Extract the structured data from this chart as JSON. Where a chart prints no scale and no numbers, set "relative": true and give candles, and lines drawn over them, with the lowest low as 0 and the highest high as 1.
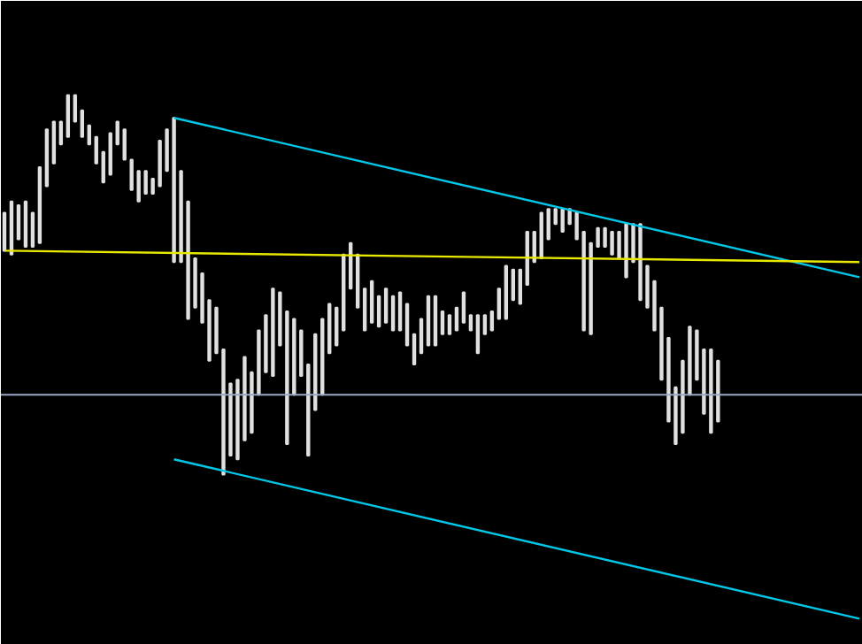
{
  "chart_data": {
    "type": "candlestick",
    "relative": true,
    "tick_labels": false,
    "grid": false,
    "color": "#e0e0e0",
    "categories": [
      null,
      null,
      null,
      null,
      null,
      null,
      null,
      null,
      null,
      null,
      null,
      null,
      null,
      null,
      null,
      null,
      null,
      null,
      null,
      null,
      null,
      null,
      null,
      null,
      null,
      null,
      null,
      null,
      null,
      null,
      null,
      null,
      null,
      null,
      null,
      null,
      null,
      null,
      null,
      null,
      null,
      null,
      null,
      null,
      null,
      null,
      null,
      null,
      null,
      null,
      null,
      null,
      null,
      null,
      null,
      null,
      null,
      null,
      null,
      null,
      null,
      null,
      null,
      null,
      null,
      null,
      null,
      null,
      null,
      null,
      null,
      null,
      null,
      null,
      null,
      null,
      null,
      null,
      null,
      null,
      null,
      null,
      null,
      null,
      null,
      null,
      null,
      null,
      null,
      null,
      null,
      null,
      null,
      null,
      null,
      null,
      null,
      null,
      null,
      null,
      null,
      null,
      null,
      null,
      null,
      null,
      null,
      null,
      null,
      null,
      null,
      null,
      null,
      null,
      null,
      null,
      null,
      null,
      null,
      null,
      null,
      null
    ],
    "ohlc": [
      [
        0.59,
        0.69,
        0.59,
        0.69
      ],
      [
        0.58,
        0.72,
        0.58,
        0.72
      ],
      [
        0.62,
        0.71,
        0.62,
        0.71
      ],
      [
        0.6,
        0.72,
        0.6,
        0.72
      ],
      [
        0.6,
        0.69,
        0.6,
        0.69
      ],
      [
        0.61,
        0.81,
        0.61,
        0.81
      ],
      [
        0.76,
        0.91,
        0.76,
        0.91
      ],
      [
        0.82,
        0.93,
        0.82,
        0.93
      ],
      [
        0.87,
        0.93,
        0.87,
        0.93
      ],
      [
        0.89,
        1.0,
        0.89,
        1.0
      ],
      [
        0.93,
        1.0,
        0.93,
        1.0
      ],
      [
        0.89,
        0.96,
        0.89,
        0.96
      ],
      [
        0.87,
        0.92,
        0.87,
        0.92
      ],
      [
        0.82,
        0.89,
        0.82,
        0.89
      ],
      [
        0.77,
        0.85,
        0.77,
        0.85
      ],
      [
        0.79,
        0.9,
        0.79,
        0.9
      ],
      [
        0.87,
        0.93,
        0.87,
        0.93
      ],
      [
        0.83,
        0.91,
        0.83,
        0.91
      ],
      [
        0.75,
        0.83,
        0.75,
        0.83
      ],
      [
        0.72,
        0.8,
        0.72,
        0.8
      ],
      [
        0.74,
        0.8,
        0.74,
        0.8
      ],
      [
        0.74,
        0.78,
        0.74,
        0.78
      ],
      [
        0.76,
        0.88,
        0.76,
        0.88
      ],
      [
        0.8,
        0.91,
        0.8,
        0.91
      ],
      [
        0.56,
        0.94,
        0.56,
        0.94
      ],
      [
        0.56,
        0.8,
        0.56,
        0.8
      ],
      [
        0.41,
        0.72,
        0.41,
        0.72
      ],
      [
        0.44,
        0.57,
        0.44,
        0.57
      ],
      [
        0.4,
        0.53,
        0.4,
        0.53
      ],
      [
        0.3,
        0.46,
        0.3,
        0.46
      ],
      [
        0.32,
        0.44,
        0.32,
        0.44
      ],
      [
        0.0,
        0.33,
        0.0,
        0.33
      ],
      [
        0.05,
        0.24,
        0.05,
        0.24
      ],
      [
        0.04,
        0.25,
        0.04,
        0.25
      ],
      [
        0.09,
        0.31,
        0.09,
        0.31
      ],
      [
        0.11,
        0.27,
        0.11,
        0.27
      ],
      [
        0.21,
        0.38,
        0.21,
        0.38
      ],
      [
        0.27,
        0.42,
        0.27,
        0.42
      ],
      [
        0.26,
        0.49,
        0.26,
        0.49
      ],
      [
        0.34,
        0.48,
        0.34,
        0.48
      ],
      [
        0.08,
        0.43,
        0.08,
        0.43
      ],
      [
        0.21,
        0.41,
        0.21,
        0.41
      ],
      [
        0.26,
        0.38,
        0.26,
        0.38
      ],
      [
        0.05,
        0.29,
        0.05,
        0.29
      ],
      [
        0.17,
        0.37,
        0.17,
        0.37
      ],
      [
        0.21,
        0.41,
        0.21,
        0.41
      ],
      [
        0.32,
        0.45,
        0.32,
        0.45
      ],
      [
        0.34,
        0.44,
        0.34,
        0.44
      ],
      [
        0.38,
        0.58,
        0.38,
        0.58
      ],
      [
        0.49,
        0.61,
        0.49,
        0.61
      ],
      [
        0.44,
        0.58,
        0.44,
        0.58
      ],
      [
        0.38,
        0.49,
        0.38,
        0.49
      ],
      [
        0.4,
        0.51,
        0.4,
        0.51
      ],
      [
        0.39,
        0.47,
        0.39,
        0.47
      ],
      [
        0.4,
        0.49,
        0.4,
        0.49
      ],
      [
        0.38,
        0.47,
        0.38,
        0.47
      ],
      [
        0.38,
        0.48,
        0.38,
        0.48
      ],
      [
        0.34,
        0.45,
        0.34,
        0.45
      ],
      [
        0.29,
        0.37,
        0.29,
        0.37
      ],
      [
        0.32,
        0.41,
        0.32,
        0.41
      ],
      [
        0.34,
        0.47,
        0.34,
        0.47
      ],
      [
        0.34,
        0.47,
        0.34,
        0.47
      ],
      [
        0.37,
        0.43,
        0.37,
        0.43
      ],
      [
        0.37,
        0.42,
        0.37,
        0.42
      ],
      [
        0.38,
        0.44,
        0.38,
        0.44
      ],
      [
        0.4,
        0.48,
        0.4,
        0.48
      ],
      [
        0.38,
        0.42,
        0.38,
        0.42
      ],
      [
        0.32,
        0.42,
        0.32,
        0.42
      ],
      [
        0.37,
        0.42,
        0.37,
        0.42
      ],
      [
        0.38,
        0.43,
        0.38,
        0.43
      ],
      [
        0.41,
        0.49,
        0.41,
        0.49
      ],
      [
        0.41,
        0.55,
        0.41,
        0.55
      ],
      [
        0.46,
        0.54,
        0.46,
        0.54
      ],
      [
        0.45,
        0.54,
        0.45,
        0.54
      ],
      [
        0.5,
        0.64,
        0.5,
        0.64
      ],
      [
        0.56,
        0.64,
        0.56,
        0.64
      ],
      [
        0.57,
        0.69,
        0.57,
        0.69
      ],
      [
        0.62,
        0.7,
        0.62,
        0.7
      ],
      [
        0.66,
        0.7,
        0.66,
        0.7
      ],
      [
        0.64,
        0.7,
        0.64,
        0.7
      ],
      [
        0.66,
        0.7,
        0.66,
        0.7
      ],
      [
        0.62,
        0.69,
        0.62,
        0.69
      ],
      [
        0.38,
        0.64,
        0.38,
        0.64
      ],
      [
        0.37,
        0.61,
        0.37,
        0.61
      ],
      [
        0.6,
        0.65,
        0.6,
        0.65
      ],
      [
        0.6,
        0.65,
        0.6,
        0.65
      ],
      [
        0.58,
        0.64,
        0.58,
        0.64
      ],
      [
        0.57,
        0.64,
        0.57,
        0.64
      ],
      [
        0.52,
        0.66,
        0.52,
        0.66
      ],
      [
        0.56,
        0.66,
        0.56,
        0.66
      ],
      [
        0.46,
        0.66,
        0.46,
        0.66
      ],
      [
        0.44,
        0.55,
        0.44,
        0.55
      ],
      [
        0.38,
        0.51,
        0.38,
        0.51
      ],
      [
        0.25,
        0.44,
        0.25,
        0.44
      ],
      [
        0.14,
        0.36,
        0.14,
        0.36
      ],
      [
        0.08,
        0.23,
        0.08,
        0.23
      ],
      [
        0.11,
        0.3,
        0.11,
        0.3
      ],
      [
        0.21,
        0.39,
        0.21,
        0.39
      ],
      [
        0.25,
        0.38,
        0.25,
        0.38
      ],
      [
        0.16,
        0.33,
        0.16,
        0.33
      ],
      [
        0.11,
        0.33,
        0.11,
        0.33
      ],
      [
        0.14,
        0.3,
        0.14,
        0.3
      ],
      null,
      null,
      null,
      null,
      null,
      null,
      null,
      null,
      null,
      null,
      null,
      null,
      null,
      null,
      null,
      null,
      null,
      null,
      null,
      null
    ],
    "series": [
      {
        "type": "line",
        "color": "#00c8e8",
        "values": [
          null,
          null,
          null,
          null,
          null,
          null,
          null,
          null,
          null,
          null,
          null,
          null,
          null,
          null,
          null,
          null,
          null,
          null,
          null,
          null,
          null,
          null,
          null,
          null,
          0.94,
          null,
          null,
          null,
          null,
          null,
          null,
          null,
          null,
          null,
          null,
          null,
          null,
          null,
          null,
          null,
          null,
          null,
          null,
          null,
          null,
          null,
          null,
          null,
          null,
          null,
          null,
          null,
          null,
          null,
          null,
          null,
          null,
          null,
          null,
          null,
          null,
          null,
          null,
          null,
          null,
          null,
          null,
          null,
          null,
          null,
          null,
          null,
          null,
          null,
          null,
          null,
          null,
          null,
          null,
          null,
          null,
          null,
          null,
          null,
          null,
          null,
          null,
          null,
          null,
          null,
          null,
          null,
          null,
          null,
          null,
          null,
          null,
          null,
          null,
          null,
          null,
          null,
          null,
          null,
          null,
          null,
          null,
          null,
          null,
          null,
          null,
          null,
          null,
          null,
          null,
          null,
          null,
          null,
          null,
          null,
          null,
          0.52
        ]
      },
      {
        "type": "line",
        "color": "#00c8e8",
        "values": [
          null,
          null,
          null,
          null,
          null,
          null,
          null,
          null,
          null,
          null,
          null,
          null,
          null,
          null,
          null,
          null,
          null,
          null,
          null,
          null,
          null,
          null,
          null,
          null,
          0.04,
          null,
          null,
          null,
          null,
          null,
          null,
          null,
          null,
          null,
          null,
          null,
          null,
          null,
          null,
          null,
          null,
          null,
          null,
          null,
          null,
          null,
          null,
          null,
          null,
          null,
          null,
          null,
          null,
          null,
          null,
          null,
          null,
          null,
          null,
          null,
          null,
          null,
          null,
          null,
          null,
          null,
          null,
          null,
          null,
          null,
          null,
          null,
          null,
          null,
          null,
          null,
          null,
          null,
          null,
          null,
          null,
          null,
          null,
          null,
          null,
          null,
          null,
          null,
          null,
          null,
          null,
          null,
          null,
          null,
          null,
          null,
          null,
          null,
          null,
          null,
          null,
          null,
          null,
          null,
          null,
          null,
          null,
          null,
          null,
          null,
          null,
          null,
          null,
          null,
          null,
          null,
          null,
          null,
          null,
          null,
          null,
          -0.38
        ]
      },
      {
        "type": "line",
        "color": "#e8e800",
        "values": [
          0.59,
          null,
          null,
          null,
          null,
          null,
          null,
          null,
          null,
          null,
          null,
          null,
          null,
          null,
          null,
          null,
          null,
          null,
          null,
          null,
          null,
          null,
          null,
          null,
          null,
          null,
          null,
          null,
          null,
          null,
          null,
          null,
          null,
          null,
          null,
          null,
          null,
          null,
          null,
          null,
          null,
          null,
          null,
          null,
          null,
          null,
          null,
          null,
          null,
          null,
          null,
          null,
          null,
          null,
          null,
          null,
          null,
          null,
          null,
          null,
          null,
          null,
          null,
          null,
          null,
          null,
          null,
          null,
          null,
          null,
          null,
          null,
          null,
          null,
          null,
          null,
          null,
          null,
          null,
          null,
          null,
          null,
          null,
          null,
          null,
          null,
          null,
          null,
          null,
          null,
          null,
          null,
          null,
          null,
          null,
          null,
          null,
          null,
          null,
          null,
          null,
          null,
          null,
          null,
          null,
          null,
          null,
          null,
          null,
          null,
          null,
          null,
          null,
          null,
          null,
          null,
          null,
          null,
          null,
          null,
          null,
          0.56
        ]
      }
    ],
    "ref_lines": [
      {
        "axis": "y",
        "value": 0.21,
        "color": "#9aa8c8"
      }
    ]
  }
}
